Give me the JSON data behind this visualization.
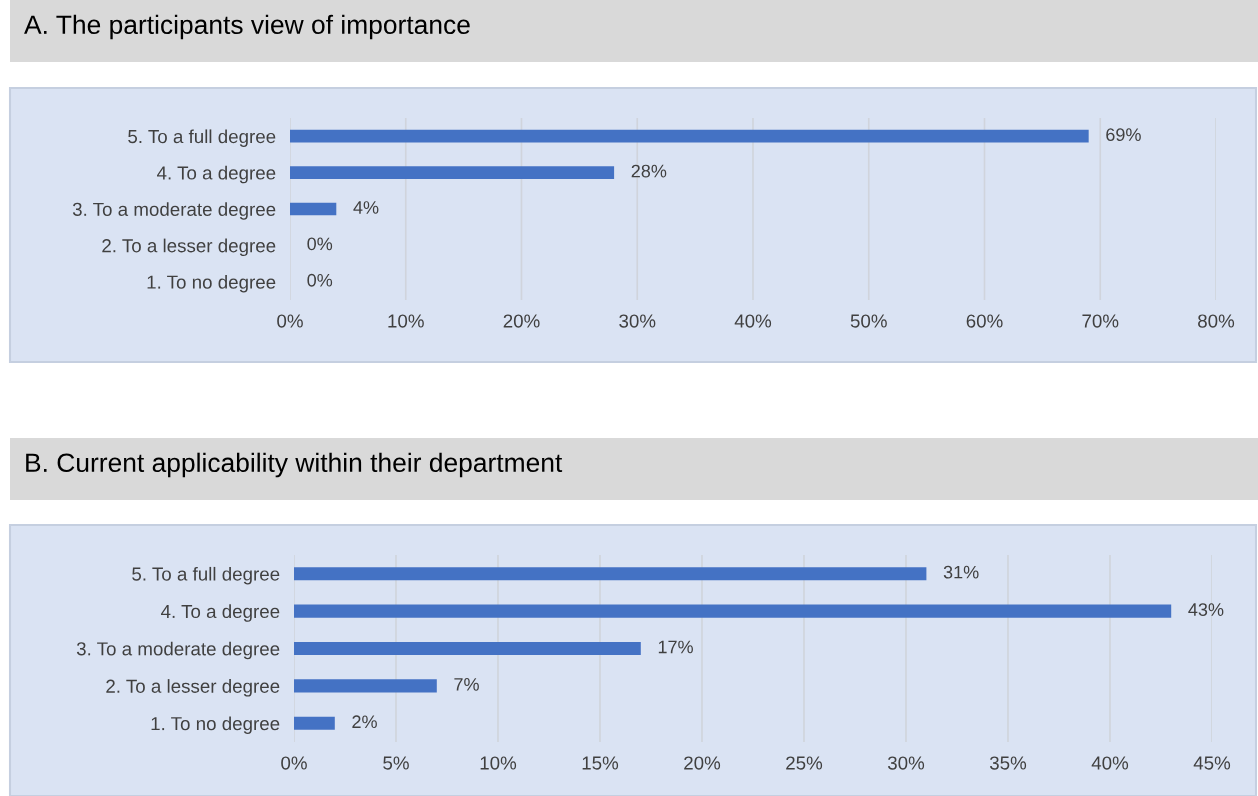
{
  "chart_data": [
    {
      "type": "bar",
      "orientation": "horizontal",
      "title": "A. The participants view of importance",
      "categories": [
        "5. To a full degree",
        "4. To a degree",
        "3. To a moderate degree",
        "2. To a lesser degree",
        "1. To no degree"
      ],
      "values": [
        69,
        28,
        4,
        0,
        0
      ],
      "value_labels": [
        "69%",
        "28%",
        "4%",
        "0%",
        "0%"
      ],
      "color": "#4472c4",
      "xlim": [
        0,
        80
      ],
      "xticks": [
        {
          "value": 0,
          "label": "0%"
        },
        {
          "value": 10,
          "label": "10%"
        },
        {
          "value": 20,
          "label": "20%"
        },
        {
          "value": 30,
          "label": "30%"
        },
        {
          "value": 40,
          "label": "40%"
        },
        {
          "value": 50,
          "label": "50%"
        },
        {
          "value": 60,
          "label": "60%"
        },
        {
          "value": 70,
          "label": "70%"
        },
        {
          "value": 80,
          "label": "80%"
        }
      ],
      "grid": "x",
      "legend": false
    },
    {
      "type": "bar",
      "orientation": "horizontal",
      "title": "B. Current applicability within their department",
      "categories": [
        "5. To a full degree",
        "4. To a degree",
        "3. To a moderate degree",
        "2. To a lesser degree",
        "1. To no degree"
      ],
      "values": [
        31,
        43,
        17,
        7,
        2
      ],
      "value_labels": [
        "31%",
        "43%",
        "17%",
        "7%",
        "2%"
      ],
      "color": "#4472c4",
      "xlim": [
        0,
        45
      ],
      "xticks": [
        {
          "value": 0,
          "label": "0%"
        },
        {
          "value": 5,
          "label": "5%"
        },
        {
          "value": 10,
          "label": "10%"
        },
        {
          "value": 15,
          "label": "15%"
        },
        {
          "value": 20,
          "label": "20%"
        },
        {
          "value": 25,
          "label": "25%"
        },
        {
          "value": 30,
          "label": "30%"
        },
        {
          "value": 35,
          "label": "35%"
        },
        {
          "value": 40,
          "label": "40%"
        },
        {
          "value": 45,
          "label": "45%"
        }
      ],
      "grid": "x",
      "legend": false
    }
  ]
}
